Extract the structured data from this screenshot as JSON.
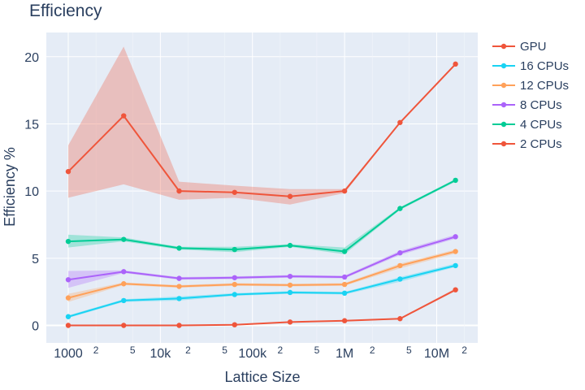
{
  "chart_data": {
    "type": "line",
    "title": "Efficiency",
    "xlabel": "Lattice Size",
    "ylabel": "Efficiency %",
    "x_scale": "log",
    "x": [
      1000,
      4000,
      16000,
      64000,
      256000,
      1000000,
      4000000,
      16000000
    ],
    "xlim": [
      578,
      27900000
    ],
    "ylim": [
      -1.3,
      21.8
    ],
    "y_ticks": [
      0,
      5,
      10,
      15,
      20
    ],
    "x_ticks_major": [
      {
        "value": 1000,
        "label": "1000"
      },
      {
        "value": 10000,
        "label": "10k"
      },
      {
        "value": 100000,
        "label": "100k"
      },
      {
        "value": 1000000,
        "label": "1M"
      },
      {
        "value": 10000000,
        "label": "10M"
      }
    ],
    "x_ticks_minor": [
      {
        "value": 2000,
        "label": "2"
      },
      {
        "value": 5000,
        "label": "5"
      },
      {
        "value": 20000,
        "label": "2"
      },
      {
        "value": 50000,
        "label": "5"
      },
      {
        "value": 200000,
        "label": "2"
      },
      {
        "value": 500000,
        "label": "5"
      },
      {
        "value": 2000000,
        "label": "2"
      },
      {
        "value": 5000000,
        "label": "5"
      },
      {
        "value": 20000000,
        "label": "2"
      }
    ],
    "grid": true,
    "legend_position": "right",
    "plot_bg": "#e5ecf6",
    "series": [
      {
        "name": "GPU",
        "color": "#ef553b",
        "values": [
          0.0,
          0.0,
          0.0,
          0.05,
          0.25,
          0.35,
          0.5,
          2.65
        ],
        "lower": [
          0.0,
          0.0,
          0.0,
          0.03,
          0.22,
          0.32,
          0.45,
          2.55
        ],
        "upper": [
          0.0,
          0.0,
          0.0,
          0.07,
          0.28,
          0.38,
          0.55,
          2.75
        ]
      },
      {
        "name": "16 CPUs",
        "color": "#19d3f3",
        "values": [
          0.65,
          1.85,
          2.0,
          2.3,
          2.45,
          2.4,
          3.45,
          4.45
        ],
        "lower": [
          0.55,
          1.75,
          1.85,
          2.2,
          2.35,
          2.3,
          3.25,
          4.35
        ],
        "upper": [
          0.75,
          1.95,
          2.15,
          2.4,
          2.55,
          2.5,
          3.6,
          4.6
        ]
      },
      {
        "name": "12 CPUs",
        "color": "#ffa15a",
        "values": [
          2.05,
          3.1,
          2.9,
          3.05,
          3.0,
          3.05,
          4.45,
          5.5
        ],
        "lower": [
          1.75,
          3.0,
          2.8,
          2.95,
          2.9,
          2.95,
          4.25,
          5.35
        ],
        "upper": [
          2.35,
          3.2,
          3.0,
          3.15,
          3.1,
          3.15,
          4.6,
          5.65
        ]
      },
      {
        "name": "8 CPUs",
        "color": "#ab63fa",
        "values": [
          3.4,
          4.0,
          3.5,
          3.55,
          3.65,
          3.6,
          5.4,
          6.6
        ],
        "lower": [
          2.8,
          3.9,
          3.4,
          3.45,
          3.55,
          3.5,
          5.25,
          6.45
        ],
        "upper": [
          4.05,
          4.1,
          3.6,
          3.65,
          3.75,
          3.7,
          5.55,
          6.75
        ]
      },
      {
        "name": "4 CPUs",
        "color": "#00cc96",
        "values": [
          6.25,
          6.4,
          5.75,
          5.65,
          5.95,
          5.5,
          8.7,
          10.8
        ],
        "lower": [
          5.8,
          6.25,
          5.65,
          5.45,
          5.85,
          5.3,
          8.6,
          10.7
        ],
        "upper": [
          6.75,
          6.55,
          5.85,
          5.85,
          6.05,
          5.8,
          8.8,
          10.9
        ]
      },
      {
        "name": "2 CPUs",
        "color": "#ef553b",
        "values": [
          11.45,
          15.6,
          10.0,
          9.9,
          9.6,
          10.0,
          15.1,
          19.45
        ],
        "lower": [
          9.5,
          10.5,
          9.35,
          9.5,
          9.0,
          9.85,
          15.05,
          19.4
        ],
        "upper": [
          13.4,
          20.75,
          10.7,
          10.4,
          10.15,
          10.15,
          15.15,
          19.5
        ]
      }
    ]
  }
}
